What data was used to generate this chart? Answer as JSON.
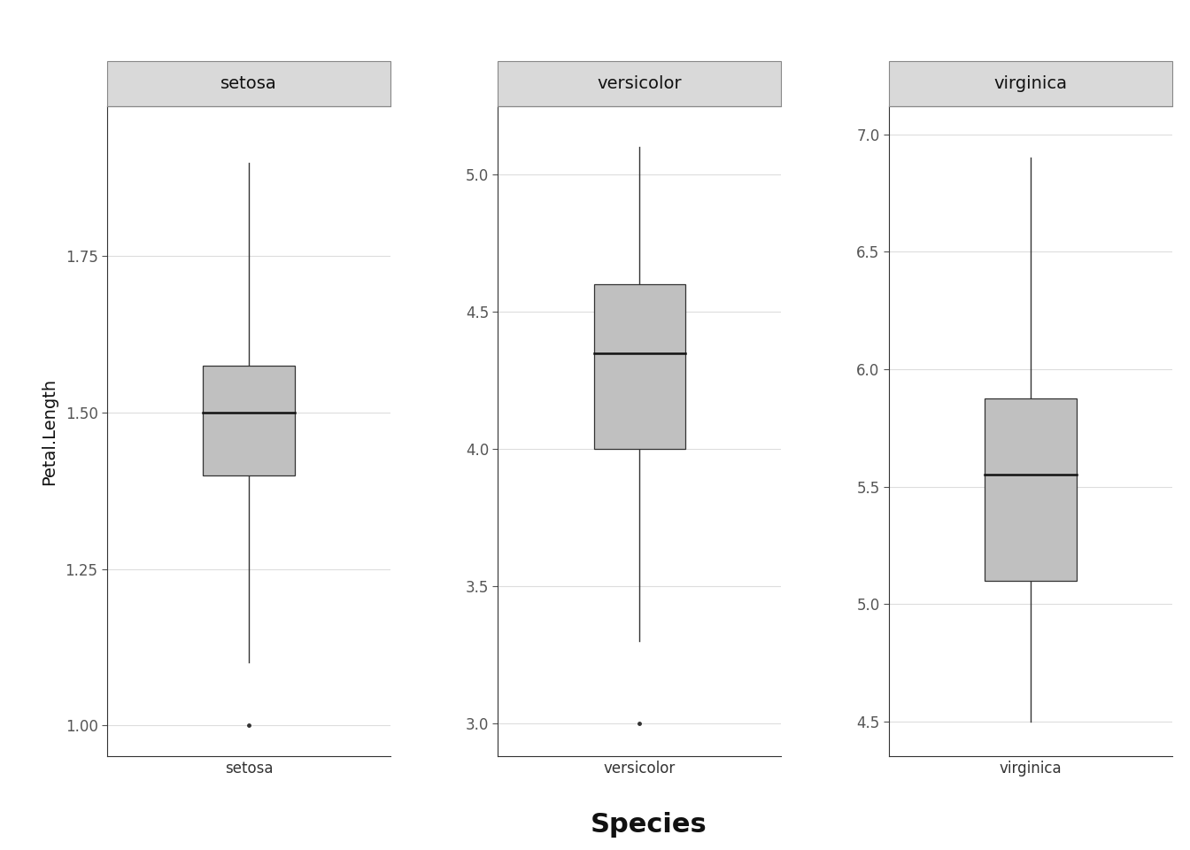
{
  "species": [
    "setosa",
    "versicolor",
    "virginica"
  ],
  "panels": {
    "setosa": {
      "whisker_low": 1.1,
      "q1": 1.4,
      "median": 1.5,
      "q3": 1.575,
      "whisker_high": 1.9,
      "outliers": [
        1.0
      ],
      "ylim": [
        0.95,
        1.99
      ],
      "yticks": [
        1.0,
        1.25,
        1.5,
        1.75
      ],
      "yticklabels": [
        "1.00",
        "1.25",
        "1.50",
        "1.75"
      ]
    },
    "versicolor": {
      "whisker_low": 3.3,
      "q1": 4.0,
      "median": 4.35,
      "q3": 4.6,
      "whisker_high": 5.1,
      "outliers": [
        3.0
      ],
      "ylim": [
        2.88,
        5.25
      ],
      "yticks": [
        3.0,
        3.5,
        4.0,
        4.5,
        5.0
      ],
      "yticklabels": [
        "3.0",
        "3.5",
        "4.0",
        "4.5",
        "5.0"
      ]
    },
    "virginica": {
      "whisker_low": 4.5,
      "q1": 5.1,
      "median": 5.55,
      "q3": 5.875,
      "whisker_high": 6.9,
      "outliers": [],
      "ylim": [
        4.35,
        7.12
      ],
      "yticks": [
        4.5,
        5.0,
        5.5,
        6.0,
        6.5,
        7.0
      ],
      "yticklabels": [
        "4.5",
        "5.0",
        "5.5",
        "6.0",
        "6.5",
        "7.0"
      ]
    }
  },
  "box_color": "#c0c0c0",
  "box_edge_color": "#333333",
  "median_color": "#111111",
  "whisker_color": "#333333",
  "outlier_color": "#333333",
  "panel_bg": "#ffffff",
  "plot_bg": "#ffffff",
  "strip_bg": "#d9d9d9",
  "strip_border_color": "#888888",
  "strip_text_color": "#111111",
  "grid_color": "#dddddd",
  "axis_border_color": "#333333",
  "xlabel": "Species",
  "ylabel": "Petal.Length",
  "xlabel_fontsize": 22,
  "ylabel_fontsize": 14,
  "tick_fontsize": 12,
  "strip_fontsize": 14,
  "box_width": 0.55
}
